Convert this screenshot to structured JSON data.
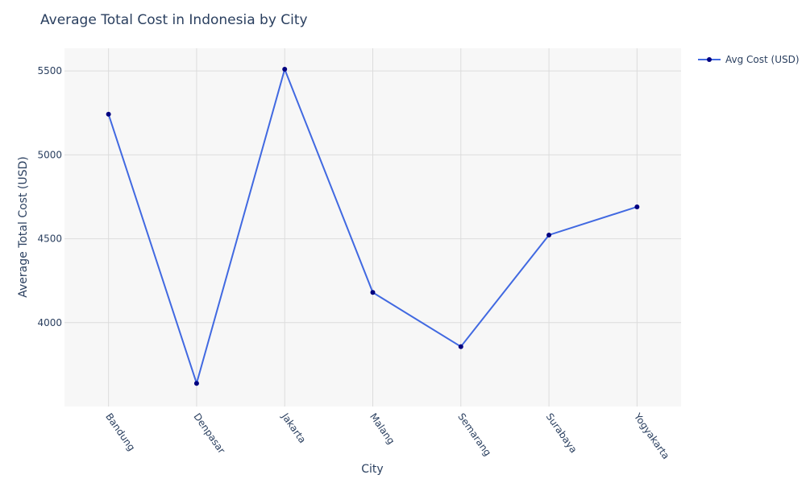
{
  "chart_data": {
    "type": "line",
    "title": "Average Total Cost in Indonesia by City",
    "xlabel": "City",
    "ylabel": "Average Total Cost (USD)",
    "categories": [
      "Bandung",
      "Denpasar",
      "Jakarta",
      "Malang",
      "Semarang",
      "Surabaya",
      "Yogyakarta"
    ],
    "series": [
      {
        "name": "Avg Cost (USD)",
        "values": [
          5242,
          3638,
          5510,
          4180,
          3857,
          4522,
          4690
        ]
      }
    ],
    "yticks": [
      4000,
      4500,
      5000,
      5500
    ],
    "ylim": [
      3500,
      5635
    ],
    "grid": true,
    "legend": "top-right",
    "colors": {
      "line": "#4169e1",
      "marker": "#000080",
      "plot_bg": "#f7f7f7",
      "grid": "#dcdcdc",
      "text": "#2a3f5f"
    }
  }
}
